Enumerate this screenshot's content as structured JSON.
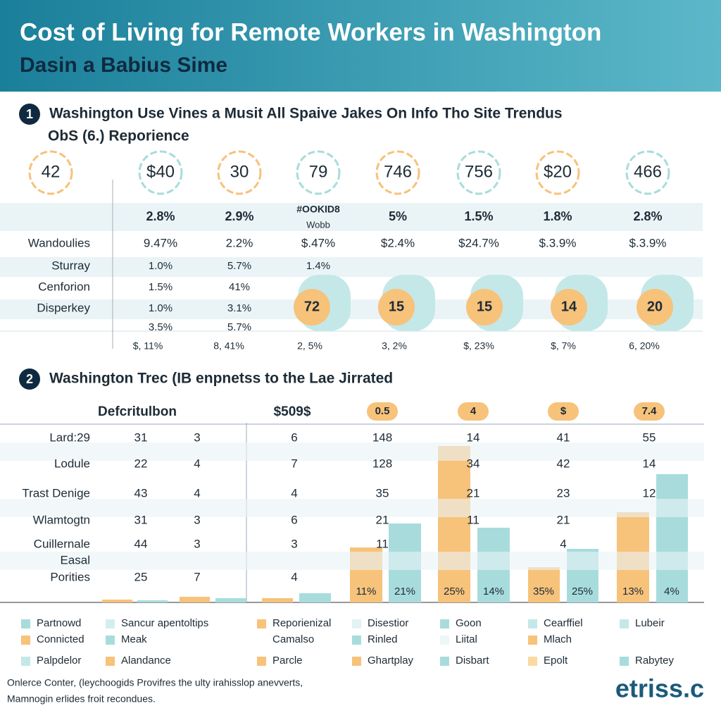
{
  "header": {
    "title": "Cost of Living for Remote Workers in Washington",
    "subtitle": "Dasin a Babius Sime"
  },
  "section1": {
    "number": "1",
    "heading": [
      "Washington Use Vines a Musit All Spaive Jakes On Info Tho Site Trendus",
      "ObS (6.) Reporience"
    ],
    "badges": [
      "42",
      "$40",
      "30",
      "79",
      "746",
      "756",
      "$20",
      "466"
    ],
    "header_row": [
      "2.8%",
      "2.9%",
      "#OOKID8",
      "5%",
      "1.5%",
      "1.8%",
      "2.8%"
    ],
    "header_note": "Wobb",
    "rows": [
      {
        "label": "Wandoulies",
        "cells": [
          "9.47%",
          "2.2%",
          "$.47%",
          "$2.4%",
          "$24.7%",
          "$.3.9%",
          "$.3.9%"
        ]
      },
      {
        "label": "Sturray",
        "cells": [
          "1.0%",
          "5.7%",
          "1.4%"
        ]
      },
      {
        "label": "Cenforion",
        "cells": [
          "1.5%",
          "41%"
        ]
      },
      {
        "label": "Disperkey",
        "cells": [
          "1.0%",
          "3.1%"
        ]
      },
      {
        "label": null,
        "cells": [
          "3.5%",
          "5.7%"
        ]
      }
    ],
    "map_badges": [
      "72",
      "15",
      "15",
      "14",
      "20"
    ],
    "footer_row": [
      "$, 11%",
      "8, 41%",
      "2, 5%",
      "3, 2%",
      "$, 23%",
      "$, 7%",
      "6, 20%"
    ]
  },
  "section2": {
    "number": "2",
    "heading": "Washington Trec (IB enpnetss to the Lae Jirrated",
    "header_label": "Defcritulbon",
    "header_value": "$509$",
    "pills": [
      "0.5",
      "4",
      "$",
      "7.4"
    ],
    "rows": [
      {
        "label": "Lard:29",
        "cells": [
          "31",
          "3",
          "6",
          "148",
          "14",
          "41",
          "55"
        ]
      },
      {
        "label": "Lodule",
        "cells": [
          "22",
          "4",
          "7",
          "128",
          "34",
          "42",
          "14"
        ]
      },
      {
        "label": "Trast Denige",
        "cells": [
          "43",
          "4",
          "4",
          "35",
          "21",
          "23",
          "12"
        ]
      },
      {
        "label": "Wlamtogtn",
        "cells": [
          "31",
          "3",
          "6",
          "21",
          "11",
          "21",
          null
        ]
      },
      {
        "label": "Cuillernale",
        "cells": [
          "44",
          "3",
          "3",
          "11",
          null,
          "4",
          null
        ]
      },
      {
        "label": "Easal",
        "cells": []
      },
      {
        "label": "Porities",
        "cells": [
          "25",
          "7",
          "4"
        ]
      }
    ],
    "bar_labels": [
      "11%",
      "21%",
      "25%",
      "14%",
      "35%",
      "25%",
      "13%",
      "4%"
    ]
  },
  "legend": [
    [
      {
        "name": "Partnowd",
        "color": "#a8dcdc"
      },
      {
        "name": "Sancur apentoltips",
        "color": "#d3eeee"
      },
      {
        "name": "Reporienizal",
        "color": "#f7c27a"
      },
      {
        "name": "Disestior",
        "color": "#e3f2f2"
      },
      {
        "name": "Goon",
        "color": "#a8dcdc"
      },
      {
        "name": "Cearffiel",
        "color": "#c4e8e8"
      },
      {
        "name": "Lubeir",
        "color": "#c4e8e8"
      }
    ],
    [
      {
        "name": "Connicted",
        "color": "#f7c27a"
      },
      {
        "name": "Meak",
        "color": "#a8dcdc"
      },
      {
        "name": "Camalso",
        "color": "#ffffff"
      },
      {
        "name": "Rinled",
        "color": "#a8dcdc"
      },
      {
        "name": "Liital",
        "color": "#eef6f6"
      },
      {
        "name": "Mlach",
        "color": "#f7c27a"
      }
    ],
    [
      {
        "name": "Palpdelor",
        "color": "#c4e8e8"
      },
      {
        "name": "Alandance",
        "color": "#f7c27a"
      },
      {
        "name": "Parcle",
        "color": "#f7c27a"
      },
      {
        "name": "Ghartplay",
        "color": "#f7c27a"
      },
      {
        "name": "Disbart",
        "color": "#a8dcdc"
      },
      {
        "name": "Epolt",
        "color": "#fbd9a0"
      },
      {
        "name": "Rabytey",
        "color": "#a8dcdc"
      }
    ]
  ],
  "footer": {
    "lines": [
      "Onlerce Conter, (leychoogids Provifres the ulty irahisslop anevverts,",
      "Mamnogin erlides froit recondues."
    ],
    "logo": "etriss.c"
  }
}
